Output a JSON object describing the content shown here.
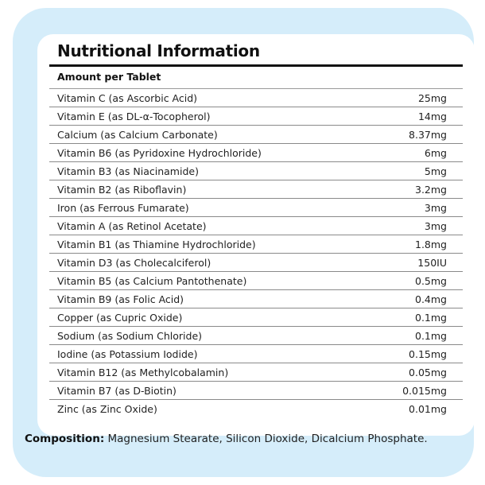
{
  "title": "Nutritional Information",
  "subheader": "Amount per Tablet",
  "rows": [
    {
      "name": "Vitamin C (as Ascorbic Acid)",
      "amount": "25mg"
    },
    {
      "name": "Vitamin E (as DL-α-Tocopherol)",
      "amount": "14mg"
    },
    {
      "name": "Calcium (as Calcium Carbonate)",
      "amount": "8.37mg"
    },
    {
      "name": "Vitamin B6 (as Pyridoxine Hydrochloride)",
      "amount": "6mg"
    },
    {
      "name": "Vitamin B3 (as Niacinamide)",
      "amount": "5mg"
    },
    {
      "name": "Vitamin B2 (as Riboflavin)",
      "amount": "3.2mg"
    },
    {
      "name": "Iron (as Ferrous Fumarate)",
      "amount": "3mg"
    },
    {
      "name": "Vitamin A (as Retinol Acetate)",
      "amount": "3mg"
    },
    {
      "name": "Vitamin B1 (as Thiamine Hydrochloride)",
      "amount": "1.8mg"
    },
    {
      "name": "Vitamin D3 (as Cholecalciferol)",
      "amount": "150IU"
    },
    {
      "name": "Vitamin B5 (as Calcium Pantothenate)",
      "amount": "0.5mg"
    },
    {
      "name": "Vitamin B9 (as Folic Acid)",
      "amount": "0.4mg"
    },
    {
      "name": "Copper (as Cupric Oxide)",
      "amount": "0.1mg"
    },
    {
      "name": "Sodium (as Sodium Chloride)",
      "amount": "0.1mg"
    },
    {
      "name": "Iodine (as Potassium Iodide)",
      "amount": "0.15mg"
    },
    {
      "name": "Vitamin B12 (as Methylcobalamin)",
      "amount": "0.05mg"
    },
    {
      "name": "Vitamin B7 (as D-Biotin)",
      "amount": "0.015mg"
    },
    {
      "name": "Zinc (as Zinc Oxide)",
      "amount": "0.01mg"
    }
  ],
  "composition": {
    "label": "Composition:",
    "text": "Magnesium Stearate, Silicon Dioxide, Dicalcium Phosphate."
  },
  "colors": {
    "panel": "#d5edfa",
    "card": "#ffffff"
  }
}
